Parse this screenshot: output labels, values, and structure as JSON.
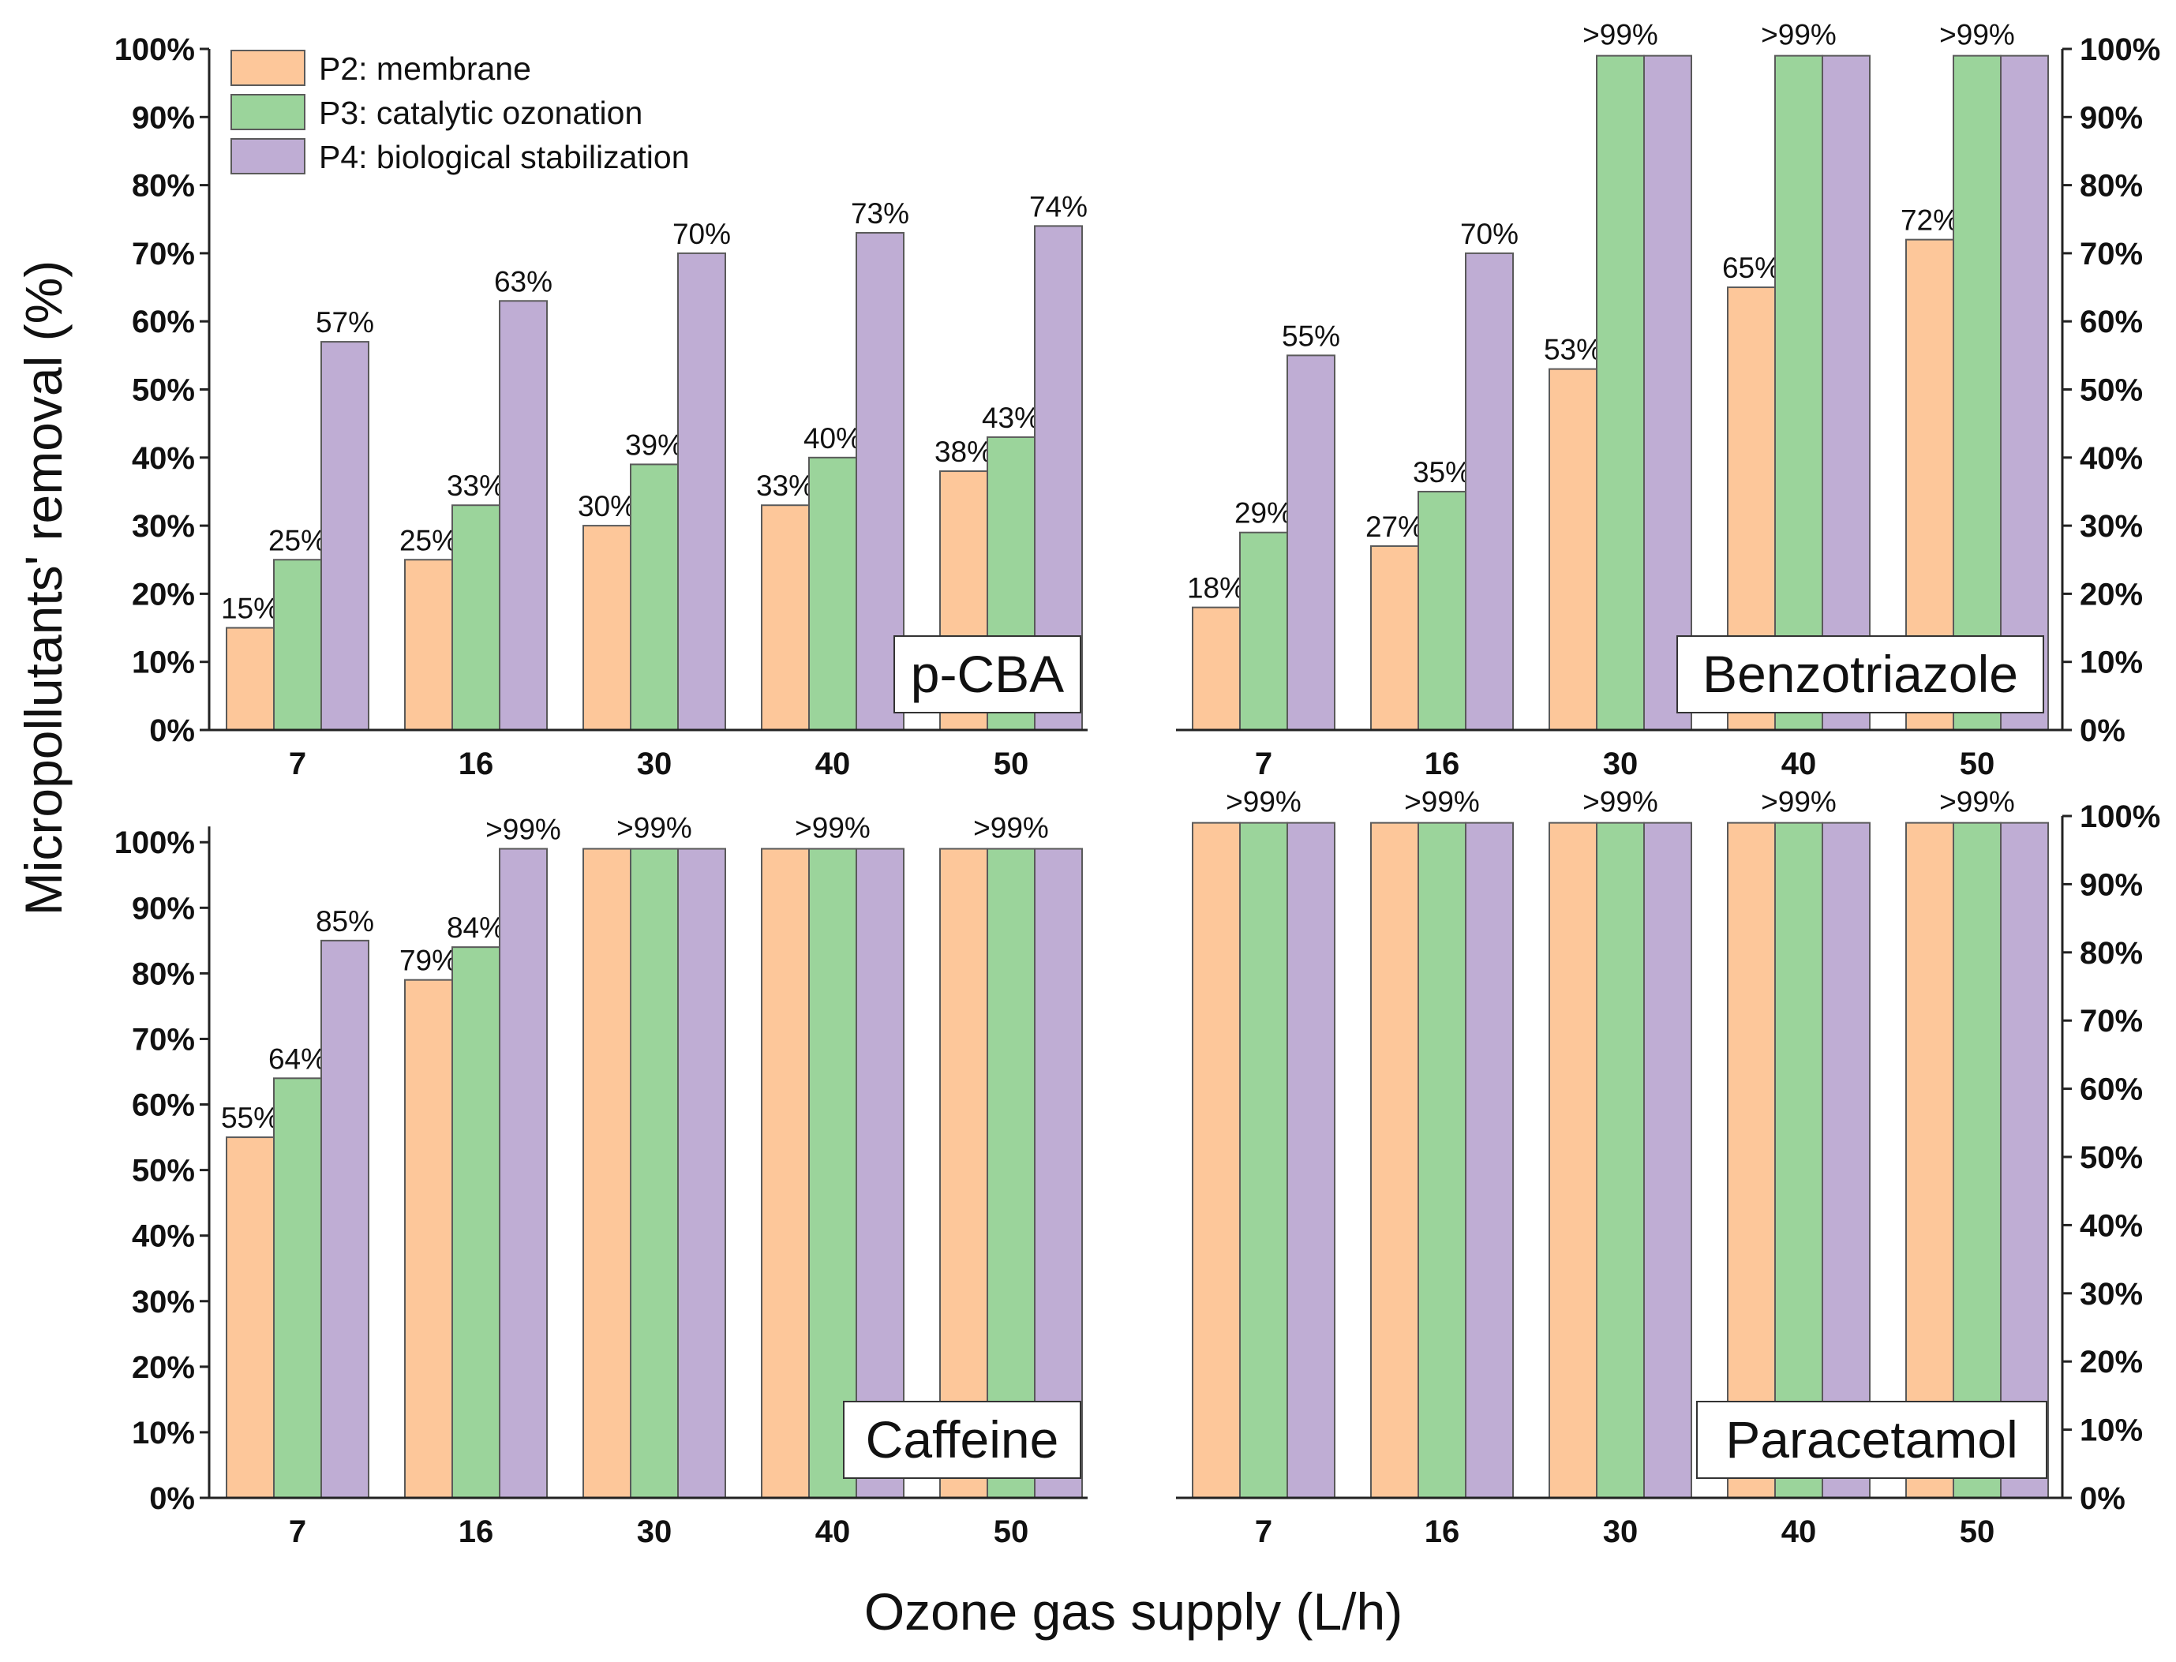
{
  "figure": {
    "ylabel": "Micropollutants' removal (%)",
    "xlabel": "Ozone gas supply (L/h)"
  },
  "legend": [
    {
      "label": "P2: membrane",
      "color": "#FDC79A"
    },
    {
      "label": "P3: catalytic ozonation",
      "color": "#9BD49B"
    },
    {
      "label": "P4: biological stabilization",
      "color": "#BFADD4"
    }
  ],
  "colors": {
    "edge": "#5a5a5a",
    "axis": "#222222",
    "text": "#111111"
  },
  "chart_data": [
    {
      "type": "bar",
      "title": "p-CBA",
      "categories": [
        "7",
        "16",
        "30",
        "40",
        "50"
      ],
      "ylim": [
        0,
        100
      ],
      "yticks": [
        "0%",
        "10%",
        "20%",
        "30%",
        "40%",
        "50%",
        "60%",
        "70%",
        "80%",
        "90%",
        "100%"
      ],
      "yaxis_side": "left",
      "series": [
        {
          "name": "P2: membrane",
          "values": [
            15,
            25,
            30,
            33,
            38
          ],
          "labels": [
            "15%",
            "25%",
            "30%",
            "33%",
            "38%"
          ]
        },
        {
          "name": "P3: catalytic ozonation",
          "values": [
            25,
            33,
            39,
            40,
            43
          ],
          "labels": [
            "25%",
            "33%",
            "39%",
            "40%",
            "43%"
          ]
        },
        {
          "name": "P4: biological stabilization",
          "values": [
            57,
            63,
            70,
            73,
            74
          ],
          "labels": [
            "57%",
            "63%",
            "70%",
            "73%",
            "74%"
          ]
        }
      ]
    },
    {
      "type": "bar",
      "title": "Benzotriazole",
      "categories": [
        "7",
        "16",
        "30",
        "40",
        "50"
      ],
      "ylim": [
        0,
        100
      ],
      "yticks": [
        "0%",
        "10%",
        "20%",
        "30%",
        "40%",
        "50%",
        "60%",
        "70%",
        "80%",
        "90%",
        "100%"
      ],
      "yaxis_side": "right",
      "series": [
        {
          "name": "P2: membrane",
          "values": [
            18,
            27,
            53,
            65,
            72
          ],
          "labels": [
            "18%",
            "27%",
            "53%",
            "65%",
            "72%"
          ]
        },
        {
          "name": "P3: catalytic ozonation",
          "values": [
            29,
            35,
            99,
            99,
            99
          ],
          "labels": [
            "29%",
            "35%",
            "",
            "",
            ""
          ]
        },
        {
          "name": "P4: biological stabilization",
          "values": [
            55,
            70,
            99,
            99,
            99
          ],
          "labels": [
            "55%",
            "70%",
            "",
            "",
            ""
          ]
        }
      ],
      "group_labels": [
        "",
        "",
        ">99%",
        ">99%",
        ">99%"
      ]
    },
    {
      "type": "bar",
      "title": "Caffeine",
      "categories": [
        "7",
        "16",
        "30",
        "40",
        "50"
      ],
      "ylim": [
        0,
        104
      ],
      "yticks": [
        "0%",
        "10%",
        "20%",
        "30%",
        "40%",
        "50%",
        "60%",
        "70%",
        "80%",
        "90%",
        "100%"
      ],
      "yaxis_side": "left",
      "series": [
        {
          "name": "P2: membrane",
          "values": [
            55,
            79,
            99,
            99,
            99
          ],
          "labels": [
            "55%",
            "79%",
            "",
            "",
            ""
          ]
        },
        {
          "name": "P3: catalytic ozonation",
          "values": [
            64,
            84,
            99,
            99,
            99
          ],
          "labels": [
            "64%",
            "84%",
            "",
            "",
            ""
          ]
        },
        {
          "name": "P4: biological stabilization",
          "values": [
            85,
            99,
            99,
            99,
            99
          ],
          "labels": [
            "85%",
            ">99%",
            "",
            "",
            ""
          ]
        }
      ],
      "group_labels": [
        "",
        "",
        ">99%",
        ">99%",
        ">99%"
      ]
    },
    {
      "type": "bar",
      "title": "Paracetamol",
      "categories": [
        "7",
        "16",
        "30",
        "40",
        "50"
      ],
      "ylim": [
        0,
        100
      ],
      "yticks": [
        "0%",
        "10%",
        "20%",
        "30%",
        "40%",
        "50%",
        "60%",
        "70%",
        "80%",
        "90%",
        "100%"
      ],
      "yaxis_side": "right",
      "series": [
        {
          "name": "P2: membrane",
          "values": [
            99,
            99,
            99,
            99,
            99
          ],
          "labels": [
            "",
            "",
            "",
            "",
            ""
          ]
        },
        {
          "name": "P3: catalytic ozonation",
          "values": [
            99,
            99,
            99,
            99,
            99
          ],
          "labels": [
            "",
            "",
            "",
            "",
            ""
          ]
        },
        {
          "name": "P4: biological stabilization",
          "values": [
            99,
            99,
            99,
            99,
            99
          ],
          "labels": [
            "",
            "",
            "",
            "",
            ""
          ]
        }
      ],
      "group_labels": [
        ">99%",
        ">99%",
        ">99%",
        ">99%",
        ">99%"
      ]
    }
  ]
}
